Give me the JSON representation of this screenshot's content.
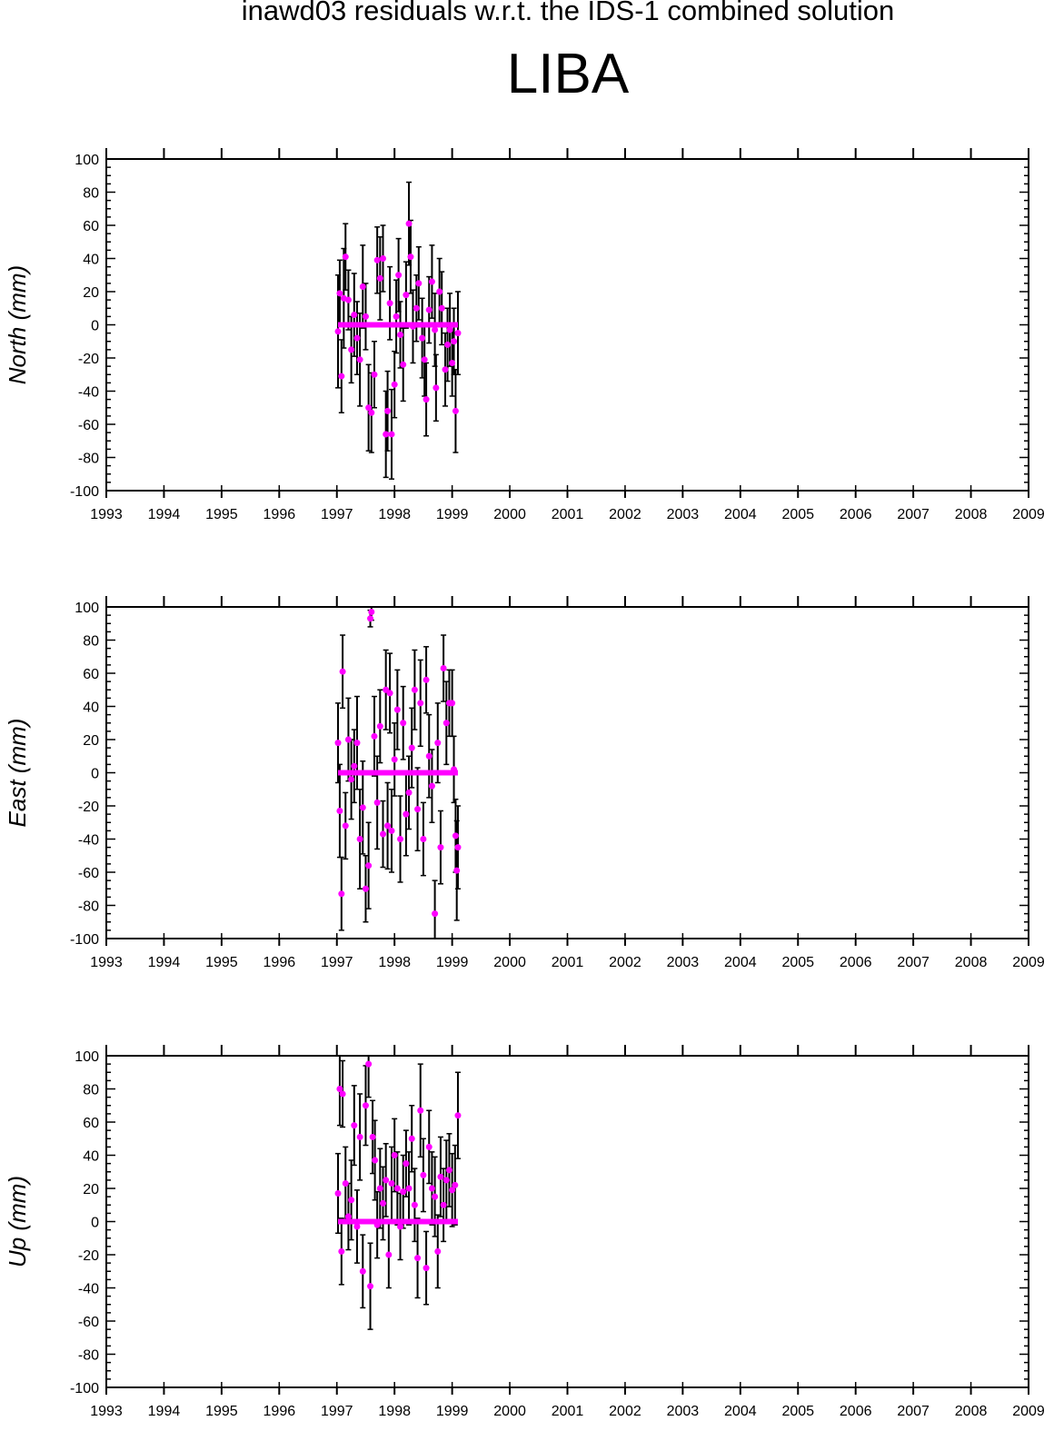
{
  "title": "inawd03 residuals w.r.t. the IDS-1 combined solution",
  "station": "LIBA",
  "colors": {
    "point": "#ff00ff",
    "errorbar": "#000000",
    "axis": "#000000",
    "background": "#ffffff"
  },
  "chart_data": [
    {
      "type": "scatter",
      "ylabel": "North (mm)",
      "xlim": [
        1993,
        2009
      ],
      "ylim": [
        -100,
        100
      ],
      "xticks": [
        "1993",
        "1994",
        "1995",
        "1996",
        "1997",
        "1998",
        "1999",
        "2000",
        "2001",
        "2002",
        "2003",
        "2004",
        "2005",
        "2006",
        "2007",
        "2008",
        "2009"
      ],
      "yticks": [
        "100",
        "80",
        "60",
        "40",
        "20",
        "0",
        "-20",
        "-40",
        "-60",
        "-80",
        "-100"
      ],
      "grid": false,
      "series": [
        {
          "points": [
            {
              "x": 1997.02,
              "y": -4,
              "err": 34
            },
            {
              "x": 1997.05,
              "y": 19,
              "err": 20
            },
            {
              "x": 1997.08,
              "y": -31,
              "err": 22
            },
            {
              "x": 1997.12,
              "y": 16,
              "err": 30
            },
            {
              "x": 1997.15,
              "y": 41,
              "err": 20
            },
            {
              "x": 1997.2,
              "y": 15,
              "err": 18
            },
            {
              "x": 1997.25,
              "y": -15,
              "err": 20
            },
            {
              "x": 1997.3,
              "y": 6,
              "err": 25
            },
            {
              "x": 1997.35,
              "y": -8,
              "err": 22
            },
            {
              "x": 1997.4,
              "y": -21,
              "err": 28
            },
            {
              "x": 1997.45,
              "y": 23,
              "err": 25
            },
            {
              "x": 1997.5,
              "y": 5,
              "err": 20
            },
            {
              "x": 1997.55,
              "y": -50,
              "err": 26
            },
            {
              "x": 1997.6,
              "y": -53,
              "err": 24
            },
            {
              "x": 1997.65,
              "y": -30,
              "err": 20
            },
            {
              "x": 1997.7,
              "y": 39,
              "err": 20
            },
            {
              "x": 1997.75,
              "y": 28,
              "err": 25
            },
            {
              "x": 1997.8,
              "y": 40,
              "err": 20
            },
            {
              "x": 1997.85,
              "y": -66,
              "err": 26
            },
            {
              "x": 1997.88,
              "y": -52,
              "err": 24
            },
            {
              "x": 1997.92,
              "y": 13,
              "err": 22
            },
            {
              "x": 1997.95,
              "y": -66,
              "err": 27
            },
            {
              "x": 1998.0,
              "y": -36,
              "err": 20
            },
            {
              "x": 1998.03,
              "y": 5,
              "err": 22
            },
            {
              "x": 1998.07,
              "y": 30,
              "err": 22
            },
            {
              "x": 1998.1,
              "y": -6,
              "err": 20
            },
            {
              "x": 1998.15,
              "y": -24,
              "err": 22
            },
            {
              "x": 1998.2,
              "y": 18,
              "err": 20
            },
            {
              "x": 1998.25,
              "y": 61,
              "err": 25
            },
            {
              "x": 1998.28,
              "y": 41,
              "err": 22
            },
            {
              "x": 1998.32,
              "y": -1,
              "err": 22
            },
            {
              "x": 1998.38,
              "y": 10,
              "err": 20
            },
            {
              "x": 1998.42,
              "y": 25,
              "err": 22
            },
            {
              "x": 1998.48,
              "y": -8,
              "err": 24
            },
            {
              "x": 1998.52,
              "y": -21,
              "err": 22
            },
            {
              "x": 1998.55,
              "y": -45,
              "err": 22
            },
            {
              "x": 1998.6,
              "y": 9,
              "err": 20
            },
            {
              "x": 1998.65,
              "y": 26,
              "err": 22
            },
            {
              "x": 1998.7,
              "y": -3,
              "err": 22
            },
            {
              "x": 1998.72,
              "y": -38,
              "err": 20
            },
            {
              "x": 1998.78,
              "y": 20,
              "err": 20
            },
            {
              "x": 1998.82,
              "y": 10,
              "err": 22
            },
            {
              "x": 1998.88,
              "y": -27,
              "err": 22
            },
            {
              "x": 1998.92,
              "y": -12,
              "err": 22
            },
            {
              "x": 1998.96,
              "y": -3,
              "err": 22
            },
            {
              "x": 1999.0,
              "y": -23,
              "err": 20
            },
            {
              "x": 1999.03,
              "y": -10,
              "err": 20
            },
            {
              "x": 1999.06,
              "y": -52,
              "err": 25
            },
            {
              "x": 1999.1,
              "y": -5,
              "err": 25
            }
          ]
        }
      ]
    },
    {
      "type": "scatter",
      "ylabel": "East (mm)",
      "xlim": [
        1993,
        2009
      ],
      "ylim": [
        -100,
        100
      ],
      "xticks": [
        "1993",
        "1994",
        "1995",
        "1996",
        "1997",
        "1998",
        "1999",
        "2000",
        "2001",
        "2002",
        "2003",
        "2004",
        "2005",
        "2006",
        "2007",
        "2008",
        "2009"
      ],
      "yticks": [
        "100",
        "80",
        "60",
        "40",
        "20",
        "0",
        "-20",
        "-40",
        "-60",
        "-80",
        "-100"
      ],
      "grid": false,
      "series": [
        {
          "points": [
            {
              "x": 1997.02,
              "y": 18,
              "err": 24
            },
            {
              "x": 1997.05,
              "y": -23,
              "err": 28
            },
            {
              "x": 1997.08,
              "y": -73,
              "err": 22
            },
            {
              "x": 1997.1,
              "y": 61,
              "err": 22
            },
            {
              "x": 1997.15,
              "y": -32,
              "err": 20
            },
            {
              "x": 1997.2,
              "y": 20,
              "err": 25
            },
            {
              "x": 1997.25,
              "y": -4,
              "err": 24
            },
            {
              "x": 1997.3,
              "y": 4,
              "err": 22
            },
            {
              "x": 1997.35,
              "y": 18,
              "err": 28
            },
            {
              "x": 1997.4,
              "y": -40,
              "err": 30
            },
            {
              "x": 1997.45,
              "y": -21,
              "err": 28
            },
            {
              "x": 1997.5,
              "y": -70,
              "err": 20
            },
            {
              "x": 1997.55,
              "y": -56,
              "err": 26
            },
            {
              "x": 1997.58,
              "y": 93,
              "err": 5
            },
            {
              "x": 1997.6,
              "y": 97,
              "err": 5
            },
            {
              "x": 1997.65,
              "y": 22,
              "err": 24
            },
            {
              "x": 1997.7,
              "y": -18,
              "err": 28
            },
            {
              "x": 1997.75,
              "y": 28,
              "err": 22
            },
            {
              "x": 1997.8,
              "y": -37,
              "err": 20
            },
            {
              "x": 1997.85,
              "y": 50,
              "err": 24
            },
            {
              "x": 1997.88,
              "y": -32,
              "err": 26
            },
            {
              "x": 1997.92,
              "y": 48,
              "err": 24
            },
            {
              "x": 1997.95,
              "y": -35,
              "err": 25
            },
            {
              "x": 1998.0,
              "y": 8,
              "err": 22
            },
            {
              "x": 1998.05,
              "y": 38,
              "err": 24
            },
            {
              "x": 1998.1,
              "y": -40,
              "err": 26
            },
            {
              "x": 1998.15,
              "y": 30,
              "err": 22
            },
            {
              "x": 1998.2,
              "y": -25,
              "err": 25
            },
            {
              "x": 1998.25,
              "y": -12,
              "err": 22
            },
            {
              "x": 1998.3,
              "y": 15,
              "err": 24
            },
            {
              "x": 1998.35,
              "y": 50,
              "err": 24
            },
            {
              "x": 1998.4,
              "y": -22,
              "err": 25
            },
            {
              "x": 1998.45,
              "y": 42,
              "err": 26
            },
            {
              "x": 1998.5,
              "y": -40,
              "err": 22
            },
            {
              "x": 1998.55,
              "y": 56,
              "err": 20
            },
            {
              "x": 1998.6,
              "y": 10,
              "err": 25
            },
            {
              "x": 1998.65,
              "y": -8,
              "err": 22
            },
            {
              "x": 1998.7,
              "y": -85,
              "err": 20
            },
            {
              "x": 1998.75,
              "y": 18,
              "err": 24
            },
            {
              "x": 1998.8,
              "y": -45,
              "err": 22
            },
            {
              "x": 1998.85,
              "y": 63,
              "err": 20
            },
            {
              "x": 1998.9,
              "y": 30,
              "err": 25
            },
            {
              "x": 1998.95,
              "y": 42,
              "err": 20
            },
            {
              "x": 1999.0,
              "y": 42,
              "err": 20
            },
            {
              "x": 1999.03,
              "y": 2,
              "err": 20
            },
            {
              "x": 1999.06,
              "y": -38,
              "err": 22
            },
            {
              "x": 1999.08,
              "y": -59,
              "err": 30
            },
            {
              "x": 1999.1,
              "y": -45,
              "err": 25
            }
          ]
        }
      ]
    },
    {
      "type": "scatter",
      "ylabel": "Up (mm)",
      "xlim": [
        1993,
        2009
      ],
      "ylim": [
        -100,
        100
      ],
      "xticks": [
        "1993",
        "1994",
        "1995",
        "1996",
        "1997",
        "1998",
        "1999",
        "2000",
        "2001",
        "2002",
        "2003",
        "2004",
        "2005",
        "2006",
        "2007",
        "2008",
        "2009"
      ],
      "yticks": [
        "100",
        "80",
        "60",
        "40",
        "20",
        "0",
        "-20",
        "-40",
        "-60",
        "-80",
        "-100"
      ],
      "grid": false,
      "series": [
        {
          "points": [
            {
              "x": 1997.02,
              "y": 17,
              "err": 24
            },
            {
              "x": 1997.05,
              "y": 80,
              "err": 22
            },
            {
              "x": 1997.08,
              "y": -18,
              "err": 20
            },
            {
              "x": 1997.1,
              "y": 77,
              "err": 20
            },
            {
              "x": 1997.15,
              "y": 23,
              "err": 22
            },
            {
              "x": 1997.2,
              "y": 3,
              "err": 20
            },
            {
              "x": 1997.25,
              "y": 13,
              "err": 24
            },
            {
              "x": 1997.3,
              "y": 58,
              "err": 24
            },
            {
              "x": 1997.35,
              "y": -3,
              "err": 22
            },
            {
              "x": 1997.4,
              "y": 51,
              "err": 26
            },
            {
              "x": 1997.45,
              "y": -30,
              "err": 22
            },
            {
              "x": 1997.5,
              "y": 70,
              "err": 24
            },
            {
              "x": 1997.55,
              "y": 95,
              "err": 20
            },
            {
              "x": 1997.58,
              "y": -39,
              "err": 26
            },
            {
              "x": 1997.62,
              "y": 51,
              "err": 22
            },
            {
              "x": 1997.66,
              "y": 37,
              "err": 24
            },
            {
              "x": 1997.7,
              "y": -2,
              "err": 20
            },
            {
              "x": 1997.75,
              "y": 20,
              "err": 24
            },
            {
              "x": 1997.8,
              "y": 11,
              "err": 22
            },
            {
              "x": 1997.85,
              "y": 25,
              "err": 22
            },
            {
              "x": 1997.9,
              "y": -20,
              "err": 20
            },
            {
              "x": 1997.95,
              "y": 23,
              "err": 22
            },
            {
              "x": 1998.0,
              "y": 40,
              "err": 22
            },
            {
              "x": 1998.05,
              "y": 20,
              "err": 22
            },
            {
              "x": 1998.1,
              "y": -3,
              "err": 20
            },
            {
              "x": 1998.15,
              "y": 18,
              "err": 22
            },
            {
              "x": 1998.2,
              "y": 35,
              "err": 20
            },
            {
              "x": 1998.25,
              "y": 20,
              "err": 22
            },
            {
              "x": 1998.3,
              "y": 50,
              "err": 20
            },
            {
              "x": 1998.35,
              "y": 10,
              "err": 22
            },
            {
              "x": 1998.4,
              "y": -22,
              "err": 24
            },
            {
              "x": 1998.45,
              "y": 67,
              "err": 28
            },
            {
              "x": 1998.5,
              "y": 28,
              "err": 22
            },
            {
              "x": 1998.55,
              "y": -28,
              "err": 22
            },
            {
              "x": 1998.6,
              "y": 45,
              "err": 22
            },
            {
              "x": 1998.65,
              "y": 20,
              "err": 22
            },
            {
              "x": 1998.7,
              "y": 15,
              "err": 24
            },
            {
              "x": 1998.75,
              "y": -18,
              "err": 22
            },
            {
              "x": 1998.8,
              "y": 27,
              "err": 24
            },
            {
              "x": 1998.85,
              "y": 10,
              "err": 22
            },
            {
              "x": 1998.9,
              "y": 25,
              "err": 24
            },
            {
              "x": 1998.95,
              "y": 31,
              "err": 22
            },
            {
              "x": 1999.0,
              "y": 19,
              "err": 22
            },
            {
              "x": 1999.05,
              "y": 22,
              "err": 24
            },
            {
              "x": 1999.1,
              "y": 64,
              "err": 26
            }
          ]
        }
      ]
    }
  ]
}
